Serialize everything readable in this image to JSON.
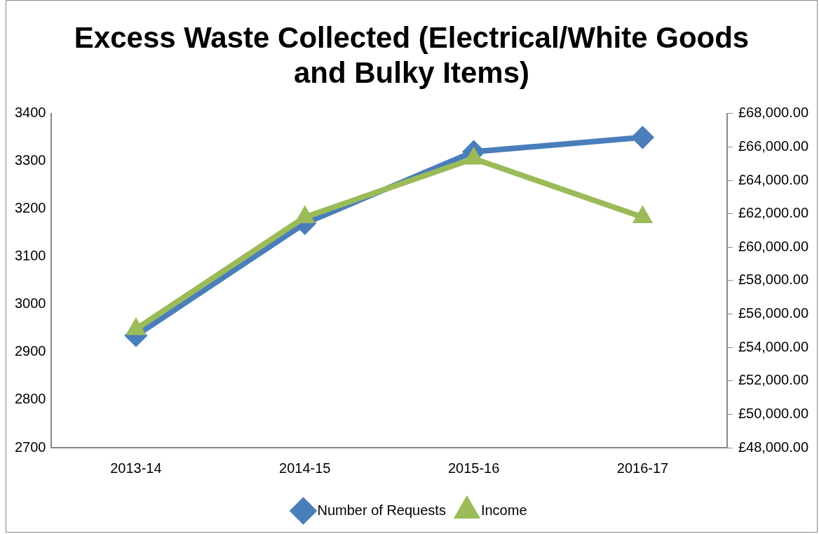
{
  "chart_data": {
    "type": "line",
    "title": "Excess Waste Collected (Electrical/White Goods and Bulky Items)",
    "categories": [
      "2013-14",
      "2014-15",
      "2015-16",
      "2016-17"
    ],
    "series": [
      {
        "name": "Number of Requests",
        "color": "#4a7ebb",
        "values": [
          2935,
          3170,
          3320,
          3350
        ],
        "marker": "diamond"
      },
      {
        "name": "Income",
        "color": "#9bbb59",
        "values": [
          55100,
          61800,
          65300,
          61800
        ],
        "axis": "y2",
        "marker": "triangle"
      }
    ],
    "ylim": [
      2700,
      3400
    ],
    "yticks": [
      2700,
      2800,
      2900,
      3000,
      3100,
      3200,
      3300,
      3400
    ],
    "y2lim": [
      48000,
      68000
    ],
    "y2ticks": [
      {
        "value": 48000,
        "label": "£48,000.00"
      },
      {
        "value": 50000,
        "label": "£50,000.00"
      },
      {
        "value": 52000,
        "label": "£52,000.00"
      },
      {
        "value": 54000,
        "label": "£54,000.00"
      },
      {
        "value": 56000,
        "label": "£56,000.00"
      },
      {
        "value": 58000,
        "label": "£58,000.00"
      },
      {
        "value": 60000,
        "label": "£60,000.00"
      },
      {
        "value": 62000,
        "label": "£62,000.00"
      },
      {
        "value": 64000,
        "label": "£64,000.00"
      },
      {
        "value": 66000,
        "label": "£66,000.00"
      },
      {
        "value": 68000,
        "label": "£68,000.00"
      }
    ],
    "grid": false,
    "legend": "bottom",
    "line_style": "solid"
  }
}
